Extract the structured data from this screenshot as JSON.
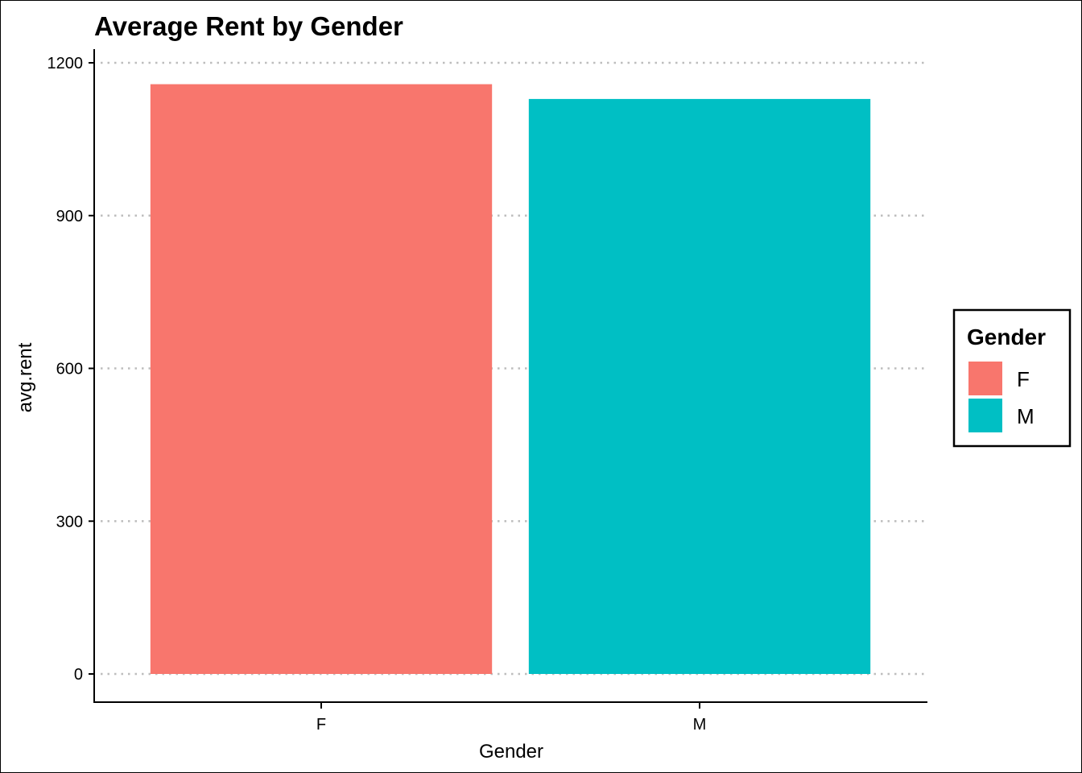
{
  "chart_data": {
    "type": "bar",
    "title": "Average Rent by Gender",
    "xlabel": "Gender",
    "ylabel": "avg.rent",
    "categories": [
      "F",
      "M"
    ],
    "values": [
      1158,
      1129
    ],
    "ylim": [
      0,
      1200
    ],
    "yticks": [
      "0",
      "300",
      "600",
      "900",
      "1200"
    ],
    "grid": "horizontal-dotted",
    "legend": {
      "title": "Gender",
      "placement": "right",
      "entries": [
        "F",
        "M"
      ]
    },
    "colors": [
      "#F8766D",
      "#00BFC4"
    ]
  }
}
